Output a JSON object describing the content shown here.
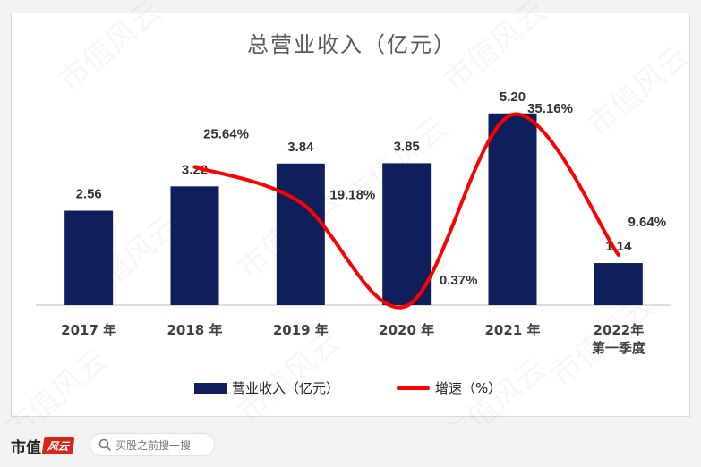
{
  "chart_data": {
    "type": "bar",
    "title": "总营业收入（亿元）",
    "categories": [
      "2017 年",
      "2018 年",
      "2019 年",
      "2020 年",
      "2021 年",
      "2022年\n第一季度"
    ],
    "series": [
      {
        "name": "营业收入（亿元）",
        "type": "bar",
        "values": [
          2.56,
          3.22,
          3.84,
          3.85,
          5.2,
          1.14
        ],
        "labels": [
          "2.56",
          "3.22",
          "3.84",
          "3.85",
          "5.20",
          "1.14"
        ],
        "color": "#0f1f5c"
      },
      {
        "name": "增速（%）",
        "type": "line",
        "values": [
          null,
          25.64,
          19.18,
          0.37,
          35.16,
          9.64
        ],
        "labels": [
          "",
          "25.64%",
          "19.18%",
          "0.37%",
          "35.16%",
          "9.64%"
        ],
        "color": "#ff0000"
      }
    ],
    "legend_position": "bottom",
    "grid": false
  },
  "watermark": "市值风云",
  "footer": {
    "brand_text": "市值",
    "brand_mark": "风云",
    "search_placeholder": "买股之前搜一搜"
  }
}
